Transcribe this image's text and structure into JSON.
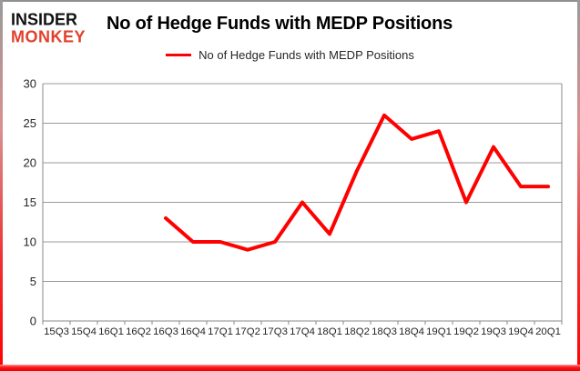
{
  "brand": {
    "top": "INSIDER",
    "bottom": "MONKEY"
  },
  "title": "No of Hedge Funds with MEDP Positions",
  "legend": {
    "label": "No of Hedge Funds with MEDP Positions"
  },
  "colors": {
    "series_line": "#ff0000",
    "logo_red": "#e2402c",
    "grid": "#9b9b9b",
    "axis": "#8a8a8a",
    "label_text": "#262626",
    "frame_gray": "#8f8f8f",
    "frame_red": "#ff0000"
  },
  "chart_data": {
    "type": "line",
    "title": "No of Hedge Funds with MEDP Positions",
    "categories": [
      "15Q3",
      "15Q4",
      "16Q1",
      "16Q2",
      "16Q3",
      "16Q4",
      "17Q1",
      "17Q2",
      "17Q3",
      "17Q4",
      "18Q1",
      "18Q2",
      "18Q3",
      "18Q4",
      "19Q1",
      "19Q2",
      "19Q3",
      "19Q4",
      "20Q1"
    ],
    "series": [
      {
        "name": "No of Hedge Funds with MEDP Positions",
        "color": "#ff0000",
        "values": [
          null,
          null,
          null,
          null,
          13,
          10,
          10,
          9,
          10,
          15,
          11,
          19,
          26,
          23,
          24,
          15,
          22,
          17,
          17
        ]
      }
    ],
    "xlabel": "",
    "ylabel": "",
    "ylim": [
      0,
      30
    ],
    "ytick_interval": 5,
    "grid": "horizontal-only",
    "legend_position": "top-center"
  }
}
